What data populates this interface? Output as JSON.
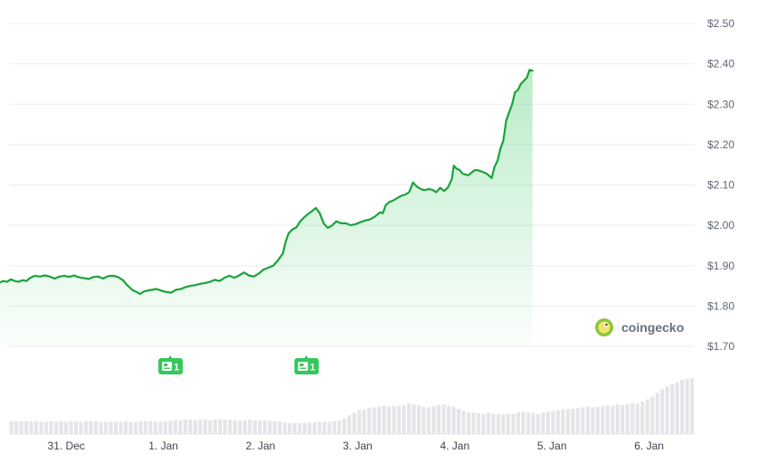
{
  "chart_data": {
    "type": "line",
    "title": "",
    "xlabel": "",
    "ylabel": "",
    "y_unit": "USD",
    "ylim": [
      1.7,
      2.5
    ],
    "y_ticks": [
      "$2.50",
      "$2.40",
      "$2.30",
      "$2.20",
      "$2.10",
      "$2.00",
      "$1.90",
      "$1.80",
      "$1.70"
    ],
    "y_tick_values": [
      2.5,
      2.4,
      2.3,
      2.2,
      2.1,
      2.0,
      1.9,
      1.8,
      1.7
    ],
    "x_ticks": [
      "31. Dec",
      "1. Jan",
      "2. Jan",
      "3. Jan",
      "4. Jan",
      "5. Jan",
      "6. Jan"
    ],
    "x_tick_days": [
      0.77,
      1.77,
      2.77,
      3.77,
      4.77,
      5.77,
      6.77
    ],
    "grid": true,
    "line_color": "#1aa33c",
    "fill_color": "#34c759",
    "volume_color": "#e3e5e8",
    "series": [
      {
        "values": [
          [
            0.0,
            1.86
          ],
          [
            0.04,
            1.86
          ],
          [
            0.08,
            1.857
          ],
          [
            0.12,
            1.862
          ],
          [
            0.16,
            1.86
          ],
          [
            0.2,
            1.866
          ],
          [
            0.24,
            1.862
          ],
          [
            0.28,
            1.86
          ],
          [
            0.32,
            1.864
          ],
          [
            0.36,
            1.862
          ],
          [
            0.4,
            1.87
          ],
          [
            0.45,
            1.875
          ],
          [
            0.5,
            1.873
          ],
          [
            0.55,
            1.876
          ],
          [
            0.6,
            1.873
          ],
          [
            0.65,
            1.868
          ],
          [
            0.7,
            1.873
          ],
          [
            0.75,
            1.875
          ],
          [
            0.8,
            1.872
          ],
          [
            0.85,
            1.876
          ],
          [
            0.88,
            1.873
          ],
          [
            0.92,
            1.87
          ],
          [
            0.96,
            1.869
          ],
          [
            1.0,
            1.867
          ],
          [
            1.05,
            1.872
          ],
          [
            1.1,
            1.873
          ],
          [
            1.15,
            1.868
          ],
          [
            1.2,
            1.874
          ],
          [
            1.25,
            1.875
          ],
          [
            1.3,
            1.872
          ],
          [
            1.35,
            1.865
          ],
          [
            1.4,
            1.851
          ],
          [
            1.45,
            1.84
          ],
          [
            1.5,
            1.834
          ],
          [
            1.53,
            1.83
          ],
          [
            1.57,
            1.836
          ],
          [
            1.6,
            1.838
          ],
          [
            1.65,
            1.84
          ],
          [
            1.7,
            1.842
          ],
          [
            1.75,
            1.838
          ],
          [
            1.8,
            1.835
          ],
          [
            1.85,
            1.833
          ],
          [
            1.9,
            1.84
          ],
          [
            1.95,
            1.842
          ],
          [
            2.0,
            1.847
          ],
          [
            2.05,
            1.85
          ],
          [
            2.1,
            1.852
          ],
          [
            2.15,
            1.855
          ],
          [
            2.2,
            1.857
          ],
          [
            2.25,
            1.86
          ],
          [
            2.3,
            1.865
          ],
          [
            2.35,
            1.862
          ],
          [
            2.4,
            1.87
          ],
          [
            2.45,
            1.875
          ],
          [
            2.5,
            1.87
          ],
          [
            2.55,
            1.876
          ],
          [
            2.6,
            1.883
          ],
          [
            2.65,
            1.876
          ],
          [
            2.7,
            1.873
          ],
          [
            2.75,
            1.88
          ],
          [
            2.8,
            1.89
          ],
          [
            2.85,
            1.895
          ],
          [
            2.9,
            1.9
          ],
          [
            2.95,
            1.913
          ],
          [
            3.0,
            1.93
          ],
          [
            3.03,
            1.96
          ],
          [
            3.06,
            1.98
          ],
          [
            3.1,
            1.99
          ],
          [
            3.14,
            1.995
          ],
          [
            3.18,
            2.01
          ],
          [
            3.22,
            2.02
          ],
          [
            3.26,
            2.028
          ],
          [
            3.3,
            2.035
          ],
          [
            3.34,
            2.043
          ],
          [
            3.38,
            2.03
          ],
          [
            3.42,
            2.005
          ],
          [
            3.46,
            1.994
          ],
          [
            3.5,
            1.998
          ],
          [
            3.55,
            2.01
          ],
          [
            3.6,
            2.005
          ],
          [
            3.65,
            2.005
          ],
          [
            3.7,
            2.0
          ],
          [
            3.75,
            2.003
          ],
          [
            3.8,
            2.008
          ],
          [
            3.85,
            2.012
          ],
          [
            3.9,
            2.015
          ],
          [
            3.95,
            2.022
          ],
          [
            4.0,
            2.032
          ],
          [
            4.03,
            2.03
          ],
          [
            4.06,
            2.05
          ],
          [
            4.1,
            2.058
          ],
          [
            4.14,
            2.062
          ],
          [
            4.18,
            2.068
          ],
          [
            4.22,
            2.073
          ],
          [
            4.26,
            2.076
          ],
          [
            4.3,
            2.082
          ],
          [
            4.34,
            2.106
          ],
          [
            4.38,
            2.096
          ],
          [
            4.42,
            2.09
          ],
          [
            4.46,
            2.087
          ],
          [
            4.5,
            2.09
          ],
          [
            4.54,
            2.088
          ],
          [
            4.58,
            2.082
          ],
          [
            4.62,
            2.093
          ],
          [
            4.66,
            2.085
          ],
          [
            4.7,
            2.094
          ],
          [
            4.74,
            2.115
          ],
          [
            4.76,
            2.148
          ],
          [
            4.79,
            2.14
          ],
          [
            4.82,
            2.137
          ],
          [
            4.85,
            2.128
          ],
          [
            4.88,
            2.126
          ],
          [
            4.91,
            2.124
          ],
          [
            4.94,
            2.13
          ],
          [
            4.97,
            2.136
          ],
          [
            5.0,
            2.137
          ],
          [
            5.05,
            2.133
          ],
          [
            5.1,
            2.128
          ],
          [
            5.15,
            2.117
          ],
          [
            5.18,
            2.145
          ],
          [
            5.21,
            2.16
          ],
          [
            5.24,
            2.19
          ],
          [
            5.27,
            2.21
          ],
          [
            5.3,
            2.26
          ],
          [
            5.33,
            2.28
          ],
          [
            5.36,
            2.3
          ],
          [
            5.39,
            2.33
          ],
          [
            5.42,
            2.335
          ],
          [
            5.45,
            2.35
          ],
          [
            5.48,
            2.358
          ],
          [
            5.51,
            2.365
          ],
          [
            5.54,
            2.385
          ],
          [
            5.57,
            2.383
          ]
        ],
        "x_unit": "days since 30 Dec 00:00"
      }
    ],
    "volume": [
      0.18,
      0.18,
      0.18,
      0.18,
      0.18,
      0.18,
      0.17,
      0.17,
      0.18,
      0.17,
      0.18,
      0.17,
      0.18,
      0.18,
      0.17,
      0.18,
      0.18,
      0.18,
      0.17,
      0.17,
      0.17,
      0.17,
      0.17,
      0.18,
      0.17,
      0.17,
      0.18,
      0.18,
      0.18,
      0.17,
      0.17,
      0.18,
      0.18,
      0.19,
      0.19,
      0.2,
      0.2,
      0.19,
      0.2,
      0.2,
      0.19,
      0.2,
      0.2,
      0.2,
      0.2,
      0.19,
      0.19,
      0.19,
      0.2,
      0.19,
      0.19,
      0.19,
      0.18,
      0.18,
      0.17,
      0.16,
      0.15,
      0.15,
      0.15,
      0.16,
      0.16,
      0.16,
      0.17,
      0.17,
      0.17,
      0.18,
      0.19,
      0.22,
      0.26,
      0.3,
      0.33,
      0.34,
      0.36,
      0.37,
      0.38,
      0.39,
      0.38,
      0.39,
      0.39,
      0.4,
      0.42,
      0.41,
      0.4,
      0.38,
      0.37,
      0.39,
      0.4,
      0.41,
      0.39,
      0.38,
      0.35,
      0.32,
      0.3,
      0.3,
      0.29,
      0.28,
      0.3,
      0.28,
      0.28,
      0.27,
      0.28,
      0.28,
      0.3,
      0.31,
      0.3,
      0.29,
      0.28,
      0.3,
      0.31,
      0.32,
      0.33,
      0.34,
      0.35,
      0.35,
      0.36,
      0.37,
      0.38,
      0.37,
      0.38,
      0.39,
      0.4,
      0.39,
      0.41,
      0.4,
      0.41,
      0.43,
      0.42,
      0.45,
      0.48,
      0.52,
      0.57,
      0.62,
      0.66,
      0.69,
      0.72,
      0.75,
      0.76,
      0.77
    ],
    "events": [
      {
        "day": 1.84,
        "label": "1"
      },
      {
        "day": 3.24,
        "label": "1"
      }
    ]
  },
  "watermark": {
    "brand": "coingecko",
    "logo": "gecko-logo-icon"
  }
}
